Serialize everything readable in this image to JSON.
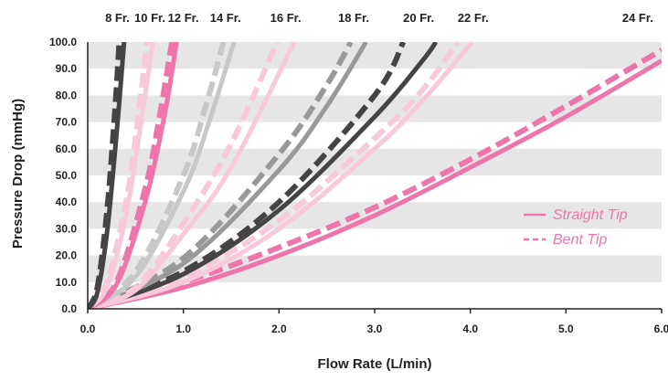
{
  "chart_data": {
    "type": "line",
    "title": "",
    "xlabel": "Flow Rate (L/min)",
    "ylabel": "Pressure Drop (mmHg)",
    "xlim": [
      0,
      6
    ],
    "ylim": [
      0,
      100
    ],
    "x_ticks": [
      "0.0",
      "1.0",
      "2.0",
      "3.0",
      "4.0",
      "5.0",
      "6.0"
    ],
    "y_ticks": [
      "0.0",
      "10.0",
      "20.0",
      "30.0",
      "40.0",
      "50.0",
      "60.0",
      "70.0",
      "80.0",
      "90.0",
      "100.0"
    ],
    "grid": "horizontal gray bands",
    "legend": {
      "placement": "right",
      "entries": [
        {
          "label": "Straight Tip",
          "style": "solid"
        },
        {
          "label": "Bent Tip",
          "style": "dashed"
        }
      ]
    },
    "size_labels": [
      {
        "label": "8 Fr.",
        "x": 0.31
      },
      {
        "label": "10 Fr.",
        "x": 0.65
      },
      {
        "label": "12 Fr.",
        "x": 1.0
      },
      {
        "label": "14 Fr.",
        "x": 1.44
      },
      {
        "label": "16 Fr.",
        "x": 2.07
      },
      {
        "label": "18 Fr.",
        "x": 2.78
      },
      {
        "label": "20 Fr.",
        "x": 3.46
      },
      {
        "label": "22 Fr.",
        "x": 4.03
      },
      {
        "label": "24 Fr.",
        "x": 5.75
      }
    ],
    "series": [
      {
        "size": "24 Fr.",
        "tip": "Straight Tip",
        "color": "#ee75a9",
        "x": [
          0,
          1,
          2,
          3,
          4,
          5,
          6
        ],
        "y": [
          0,
          8,
          20,
          35,
          53,
          72,
          93
        ]
      },
      {
        "size": "24 Fr.",
        "tip": "Bent Tip",
        "color": "#ee75a9",
        "x": [
          0,
          1,
          2,
          3,
          4,
          5,
          6
        ],
        "y": [
          0,
          10,
          23,
          38,
          56,
          76,
          97
        ]
      },
      {
        "size": "22 Fr.",
        "tip": "Straight Tip",
        "color": "#f8c8db",
        "x": [
          0,
          1,
          2,
          3,
          3.5,
          4.02
        ],
        "y": [
          0,
          10,
          30,
          60,
          78,
          100
        ]
      },
      {
        "size": "22 Fr.",
        "tip": "Bent Tip",
        "color": "#f8c8db",
        "x": [
          0,
          1,
          2,
          3,
          3.5,
          3.87
        ],
        "y": [
          0,
          12,
          33,
          64,
          82,
          100
        ]
      },
      {
        "size": "20 Fr.",
        "tip": "Straight Tip",
        "color": "#444444",
        "x": [
          0,
          1,
          2,
          3,
          3.5,
          3.64
        ],
        "y": [
          0,
          13,
          37,
          72,
          93,
          100
        ]
      },
      {
        "size": "20 Fr.",
        "tip": "Bent Tip",
        "color": "#444444",
        "x": [
          0,
          1,
          2,
          3,
          3.3
        ],
        "y": [
          0,
          14,
          40,
          80,
          100
        ]
      },
      {
        "size": "18 Fr.",
        "tip": "Straight Tip",
        "color": "#999999",
        "x": [
          0,
          1,
          2,
          2.5,
          2.91
        ],
        "y": [
          0,
          17,
          52,
          76,
          100
        ]
      },
      {
        "size": "18 Fr.",
        "tip": "Bent Tip",
        "color": "#999999",
        "x": [
          0,
          1,
          2,
          2.5,
          2.75
        ],
        "y": [
          0,
          19,
          58,
          84,
          100
        ]
      },
      {
        "size": "16 Fr.",
        "tip": "Straight Tip",
        "color": "#f8c8db",
        "x": [
          0,
          0.5,
          1,
          1.5,
          2.16
        ],
        "y": [
          0,
          7,
          28,
          53,
          100
        ]
      },
      {
        "size": "16 Fr.",
        "tip": "Bent Tip",
        "color": "#f8c8db",
        "x": [
          0,
          0.5,
          1,
          1.5,
          1.98
        ],
        "y": [
          0,
          8,
          32,
          62,
          100
        ]
      },
      {
        "size": "14 Fr.",
        "tip": "Straight Tip",
        "color": "#c8c8c8",
        "x": [
          0,
          0.5,
          1,
          1.25,
          1.53
        ],
        "y": [
          0,
          12,
          44,
          68,
          100
        ]
      },
      {
        "size": "14 Fr.",
        "tip": "Bent Tip",
        "color": "#c8c8c8",
        "x": [
          0,
          0.5,
          1,
          1.25,
          1.42
        ],
        "y": [
          0,
          14,
          50,
          78,
          100
        ]
      },
      {
        "size": "12 Fr.",
        "tip": "Straight Tip",
        "color": "#ee75a9",
        "x": [
          0,
          0.3,
          0.6,
          0.8,
          0.93
        ],
        "y": [
          0,
          9,
          40,
          72,
          100
        ]
      },
      {
        "size": "12 Fr.",
        "tip": "Bent Tip",
        "color": "#ee75a9",
        "x": [
          0,
          0.3,
          0.6,
          0.75,
          0.88
        ],
        "y": [
          0,
          10,
          45,
          72,
          100
        ]
      },
      {
        "size": "10 Fr.",
        "tip": "Straight Tip",
        "color": "#f8c8db",
        "x": [
          0,
          0.2,
          0.4,
          0.55,
          0.68
        ],
        "y": [
          0,
          8,
          35,
          68,
          100
        ]
      },
      {
        "size": "10 Fr.",
        "tip": "Bent Tip",
        "color": "#f8c8db",
        "x": [
          0,
          0.2,
          0.4,
          0.5,
          0.62
        ],
        "y": [
          0,
          10,
          40,
          64,
          100
        ]
      },
      {
        "size": "8 Fr.",
        "tip": "Straight Tip",
        "color": "#444444",
        "x": [
          0,
          0.1,
          0.2,
          0.3,
          0.38
        ],
        "y": [
          0,
          6,
          28,
          65,
          100
        ]
      },
      {
        "size": "8 Fr.",
        "tip": "Bent Tip",
        "color": "#444444",
        "x": [
          0,
          0.1,
          0.2,
          0.28,
          0.33
        ],
        "y": [
          0,
          8,
          36,
          72,
          100
        ]
      }
    ]
  }
}
